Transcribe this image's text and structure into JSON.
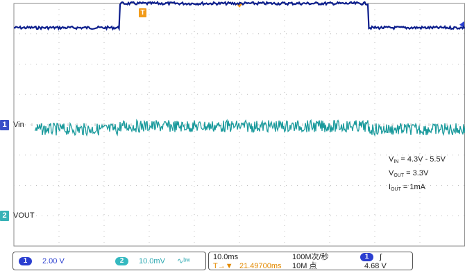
{
  "screen": {
    "colors": {
      "ch1": "#0c1e8c",
      "ch2": "#1a9a9c",
      "grid": "#bcbcbc",
      "trigger": "#f29b1a"
    },
    "markers": {
      "trigger_position": "T",
      "ch1": {
        "number": "1",
        "name": "Vin"
      },
      "ch2": {
        "number": "2",
        "name": "VOUT"
      }
    },
    "annotation": {
      "vin": {
        "base": "V",
        "sub": "IN",
        "value": " = 4.3V - 5.5V"
      },
      "vout": {
        "base": "V",
        "sub": "OUT",
        "value": " = 3.3V"
      },
      "iout": {
        "base": "I",
        "sub": "OUT",
        "value": " = 1mA"
      }
    }
  },
  "chart_data": {
    "type": "line",
    "xlabel": "",
    "ylabel": "",
    "x_divisions": 10,
    "y_divisions": 8,
    "time_per_div": "10.0ms",
    "series": [
      {
        "name": "Vin",
        "scale": "2.00 V/div",
        "low_div": 3.2,
        "high_div": 4.0,
        "rise_div": 2.35,
        "fall_div": 7.85
      },
      {
        "name": "VOUT",
        "scale": "10.0mV/div",
        "baseline_div": -0.15,
        "step_div": 0.1,
        "ripple_div": 0.4
      }
    ]
  },
  "status": {
    "ch1": {
      "badge": "1",
      "scale": "2.00 V"
    },
    "ch2": {
      "badge": "2",
      "scale": "10.0mV",
      "bw_symbol": "∿ᵇʷ"
    },
    "timebase": "10.0ms",
    "sample_rate": "100M次/秒",
    "trigger_offset": "21.49700ms",
    "trigger_offset_prefix": "T→▼",
    "record_length": "10M 点",
    "trigger_source_badge": "1",
    "trigger_slope": "∫",
    "trigger_level": "4.68 V"
  }
}
